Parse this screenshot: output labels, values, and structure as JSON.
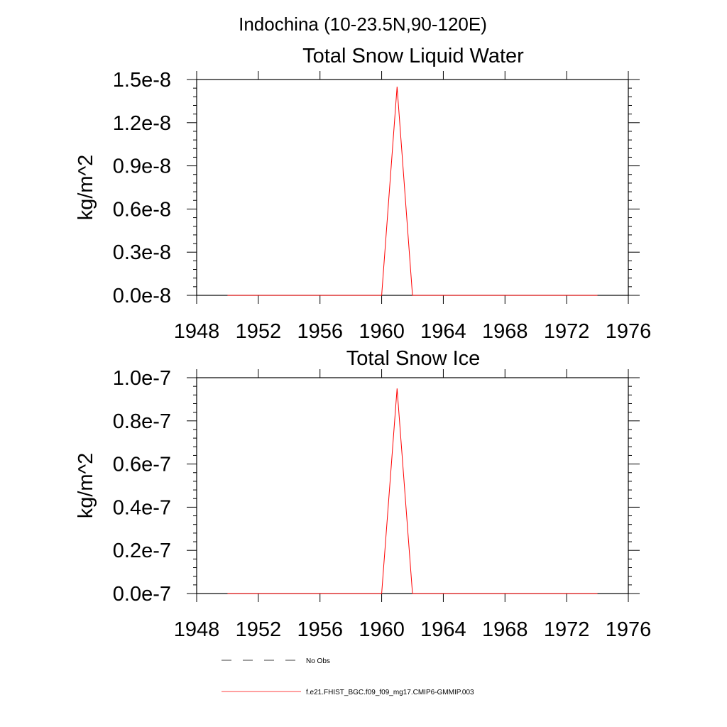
{
  "page_title": "Indochina (10-23.5N,90-120E)",
  "chart_data": [
    {
      "type": "line",
      "title": "Total Snow Liquid Water",
      "xlabel": "",
      "ylabel": "kg/m^2",
      "xlim": [
        1948,
        1976
      ],
      "ylim": [
        0,
        1.5e-08
      ],
      "x_ticks": [
        1948,
        1952,
        1956,
        1960,
        1964,
        1968,
        1972,
        1976
      ],
      "x_tick_labels": [
        "1948",
        "1952",
        "1956",
        "1960",
        "1964",
        "1968",
        "1972",
        "1976"
      ],
      "y_ticks": [
        0,
        3e-09,
        6e-09,
        9e-09,
        1.2e-08,
        1.5e-08
      ],
      "y_tick_labels": [
        "0.0e-8",
        "0.3e-8",
        "0.6e-8",
        "0.9e-8",
        "1.2e-8",
        "1.5e-8"
      ],
      "grid": false,
      "series": [
        {
          "name": "f.e21.FHIST_BGC.f09_f09_mg17.CMIP6-GMMIP.003",
          "color": "#ff0000",
          "x": [
            1950,
            1951,
            1952,
            1953,
            1954,
            1955,
            1956,
            1957,
            1958,
            1959,
            1960,
            1961,
            1962,
            1963,
            1964,
            1965,
            1966,
            1967,
            1968,
            1969,
            1970,
            1971,
            1972,
            1973,
            1974
          ],
          "values": [
            0,
            0,
            0,
            0,
            0,
            0,
            0,
            0,
            0,
            0,
            0,
            1.45e-08,
            0,
            0,
            0,
            0,
            0,
            0,
            0,
            0,
            0,
            0,
            0,
            0,
            0
          ]
        }
      ]
    },
    {
      "type": "line",
      "title": "Total Snow Ice",
      "xlabel": "",
      "ylabel": "kg/m^2",
      "xlim": [
        1948,
        1976
      ],
      "ylim": [
        0,
        1e-07
      ],
      "x_ticks": [
        1948,
        1952,
        1956,
        1960,
        1964,
        1968,
        1972,
        1976
      ],
      "x_tick_labels": [
        "1948",
        "1952",
        "1956",
        "1960",
        "1964",
        "1968",
        "1972",
        "1976"
      ],
      "y_ticks": [
        0,
        2e-08,
        4e-08,
        6e-08,
        8e-08,
        1e-07
      ],
      "y_tick_labels": [
        "0.0e-7",
        "0.2e-7",
        "0.4e-7",
        "0.6e-7",
        "0.8e-7",
        "1.0e-7"
      ],
      "grid": false,
      "series": [
        {
          "name": "f.e21.FHIST_BGC.f09_f09_mg17.CMIP6-GMMIP.003",
          "color": "#ff0000",
          "x": [
            1950,
            1951,
            1952,
            1953,
            1954,
            1955,
            1956,
            1957,
            1958,
            1959,
            1960,
            1961,
            1962,
            1963,
            1964,
            1965,
            1966,
            1967,
            1968,
            1969,
            1970,
            1971,
            1972,
            1973,
            1974
          ],
          "values": [
            0,
            0,
            0,
            0,
            0,
            0,
            0,
            0,
            0,
            0,
            0,
            9.5e-08,
            0,
            0,
            0,
            0,
            0,
            0,
            0,
            0,
            0,
            0,
            0,
            0,
            0
          ]
        }
      ]
    }
  ],
  "legend": {
    "position": "bottom",
    "entries": [
      {
        "label": "No Obs",
        "style": "dashed",
        "color": "#000000"
      },
      {
        "label": "f.e21.FHIST_BGC.f09_f09_mg17.CMIP6-GMMIP.003",
        "style": "solid",
        "color": "#ff0000"
      }
    ]
  }
}
